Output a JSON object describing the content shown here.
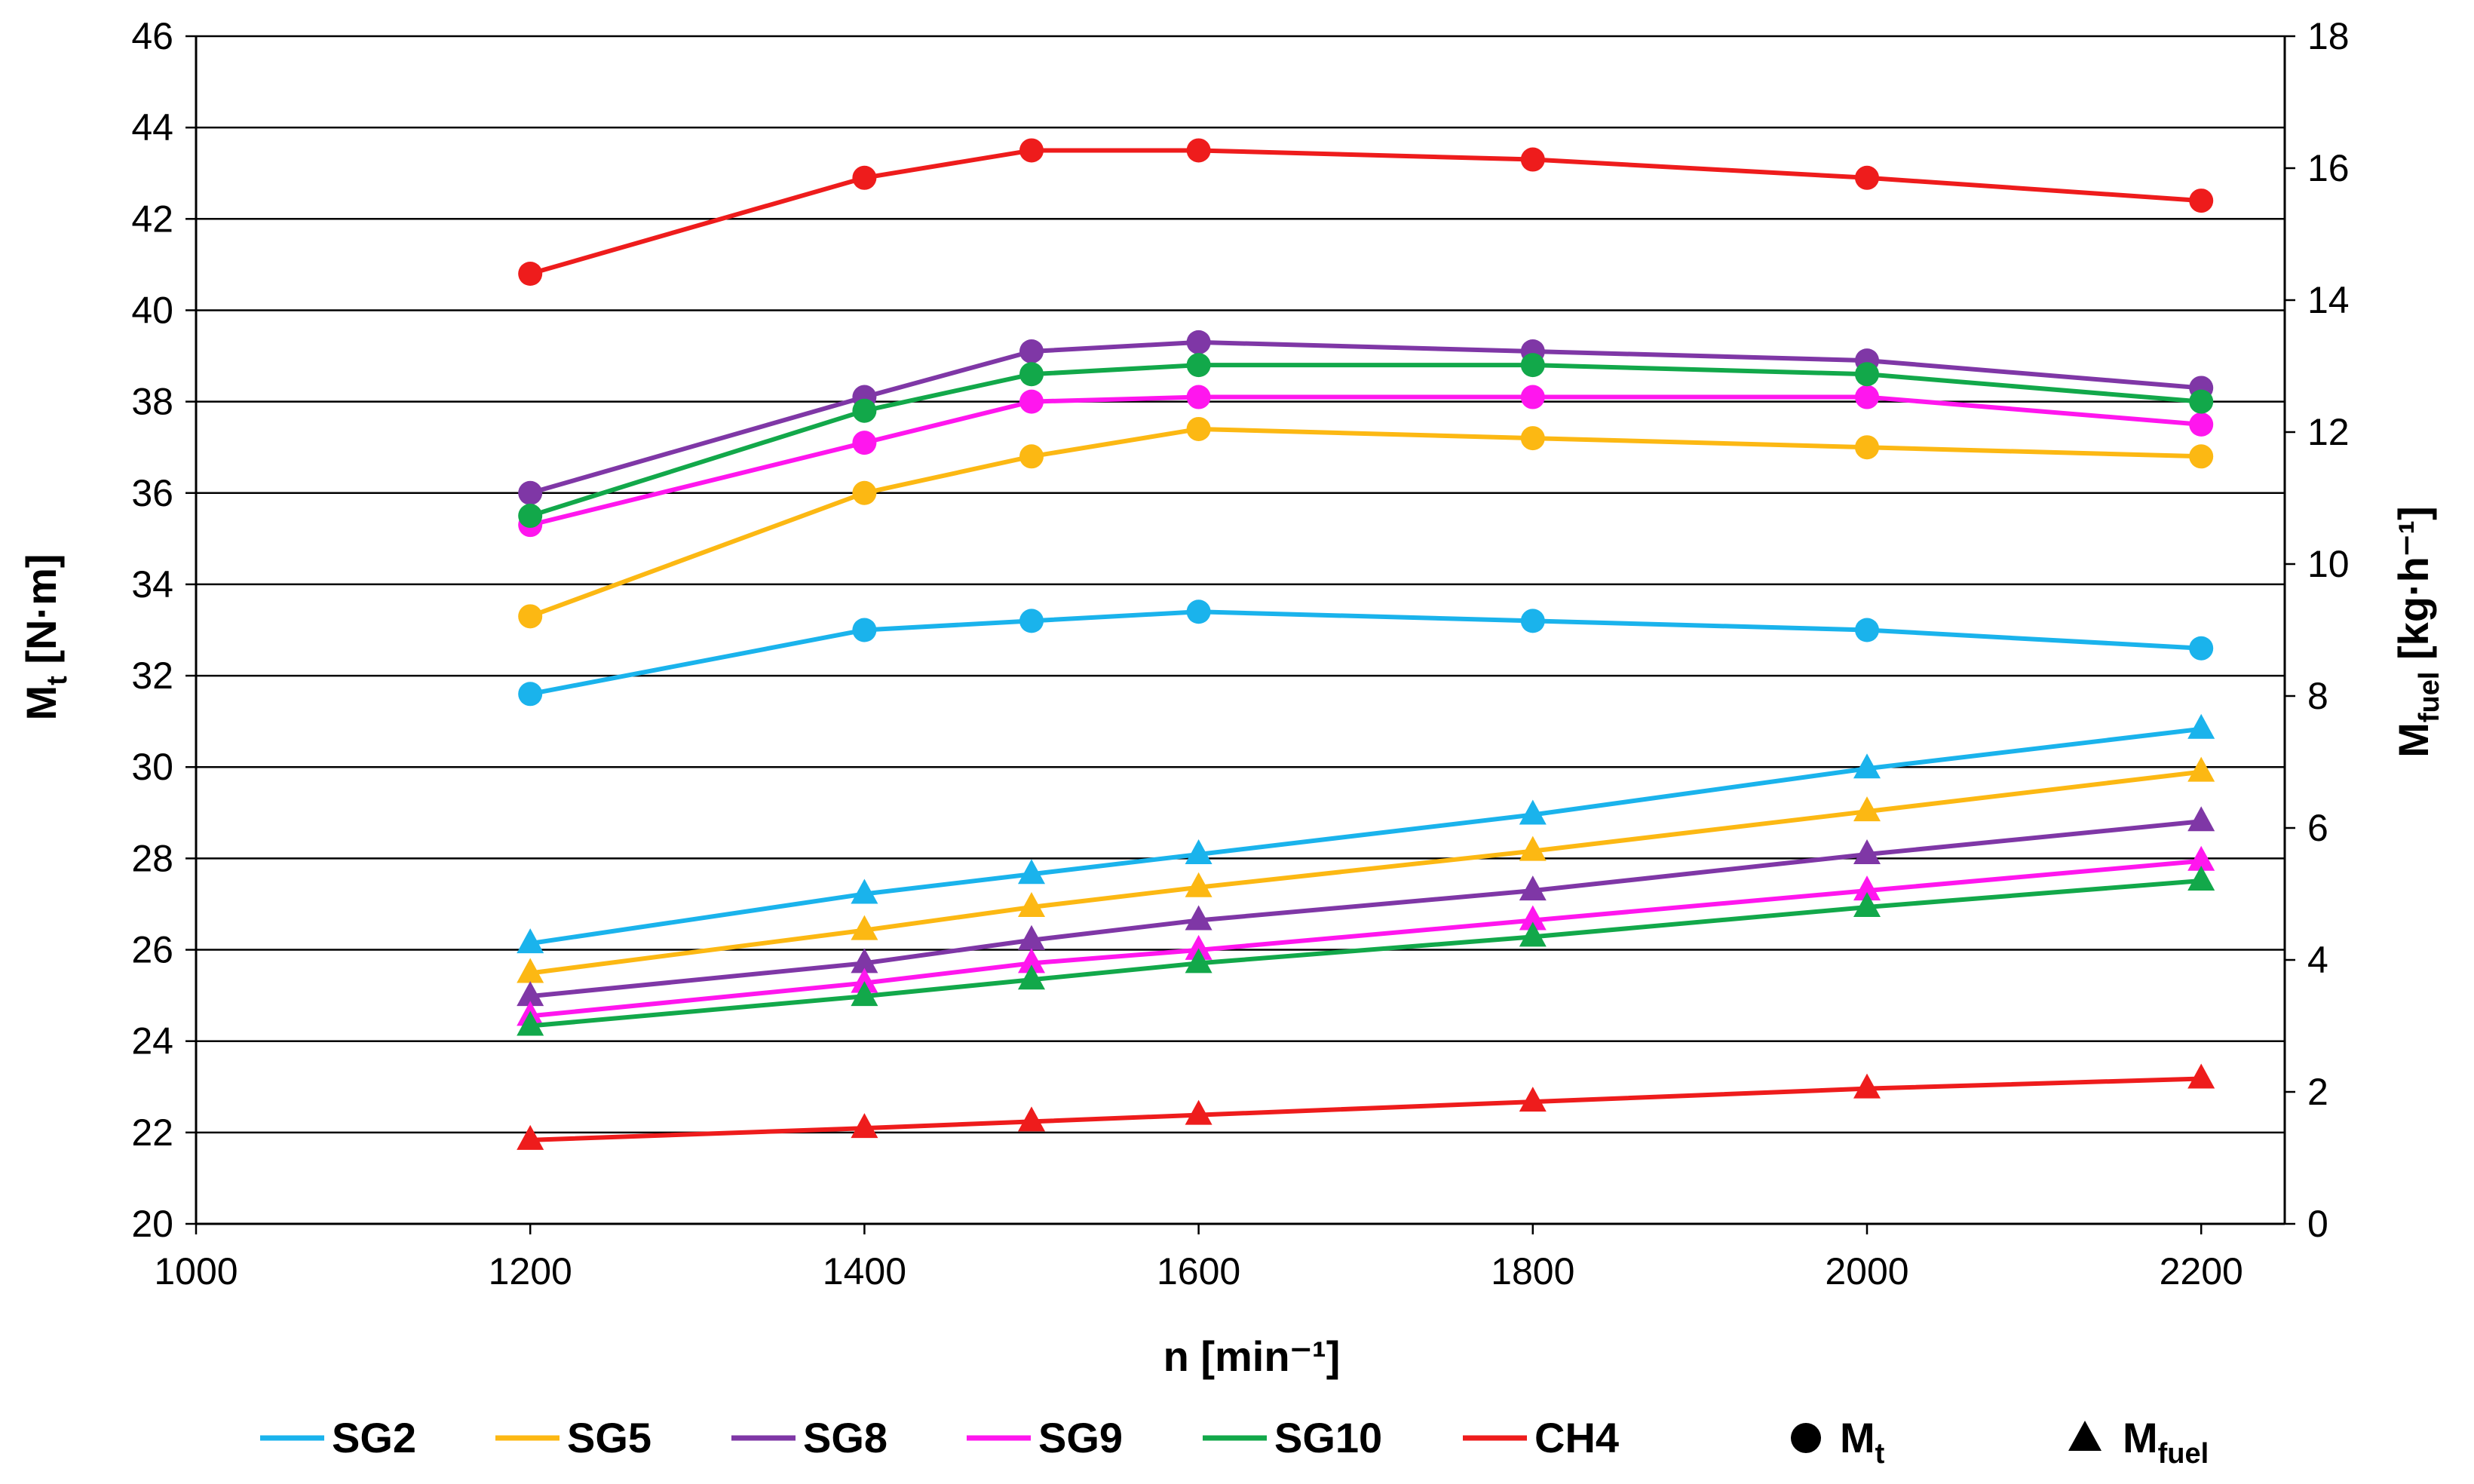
{
  "chart_data": {
    "type": "line",
    "x": [
      1200,
      1400,
      1500,
      1600,
      1800,
      2000,
      2200
    ],
    "xlabel": "n [min⁻¹]",
    "xlim": [
      1000,
      2250
    ],
    "xticks": [
      1000,
      1200,
      1400,
      1600,
      1800,
      2000,
      2200
    ],
    "ylabel_left": {
      "main": "M",
      "sub": "t",
      "unit": " [N·m]"
    },
    "ylim_left": [
      20,
      46
    ],
    "yticks_left": [
      20,
      22,
      24,
      26,
      28,
      30,
      32,
      34,
      36,
      38,
      40,
      42,
      44,
      46
    ],
    "ylabel_right": {
      "main": "M",
      "sub": "fuel",
      "unit": " [kg·h⁻¹]"
    },
    "ylim_right": [
      0,
      18
    ],
    "yticks_right": [
      0,
      2,
      4,
      6,
      8,
      10,
      12,
      14,
      16,
      18
    ],
    "grid": "horizontal",
    "series": [
      {
        "name": "SG2",
        "color": "#1ab3ec",
        "torque": [
          31.6,
          33.0,
          33.2,
          33.4,
          33.2,
          33.0,
          32.6
        ],
        "fuel": [
          4.25,
          5.0,
          5.3,
          5.6,
          6.2,
          6.9,
          7.5
        ]
      },
      {
        "name": "SG5",
        "color": "#fcb813",
        "torque": [
          33.3,
          36.0,
          36.8,
          37.4,
          37.2,
          37.0,
          36.8
        ],
        "fuel": [
          3.8,
          4.45,
          4.8,
          5.1,
          5.65,
          6.25,
          6.85
        ]
      },
      {
        "name": "SG8",
        "color": "#7f37a6",
        "torque": [
          36.0,
          38.1,
          39.1,
          39.3,
          39.1,
          38.9,
          38.3
        ],
        "fuel": [
          3.45,
          3.95,
          4.3,
          4.6,
          5.05,
          5.6,
          6.1
        ]
      },
      {
        "name": "SG9",
        "color": "#ff16ee",
        "torque": [
          35.3,
          37.1,
          38.0,
          38.1,
          38.1,
          38.1,
          37.5
        ],
        "fuel": [
          3.15,
          3.65,
          3.95,
          4.15,
          4.6,
          5.05,
          5.5
        ]
      },
      {
        "name": "SG10",
        "color": "#12a84a",
        "torque": [
          35.5,
          37.8,
          38.6,
          38.8,
          38.8,
          38.6,
          38.0
        ],
        "fuel": [
          3.0,
          3.45,
          3.7,
          3.95,
          4.35,
          4.8,
          5.2
        ]
      },
      {
        "name": "CH4",
        "color": "#ee1c1c",
        "torque": [
          40.8,
          42.9,
          43.5,
          43.5,
          43.3,
          42.9,
          42.4
        ],
        "fuel": [
          1.27,
          1.45,
          1.55,
          1.65,
          1.85,
          2.05,
          2.2
        ]
      }
    ],
    "markers": {
      "torque": {
        "shape": "circle",
        "label": "M",
        "sub": "t"
      },
      "fuel": {
        "shape": "triangle",
        "label": "M",
        "sub": "fuel"
      }
    },
    "legend": "bottom"
  }
}
